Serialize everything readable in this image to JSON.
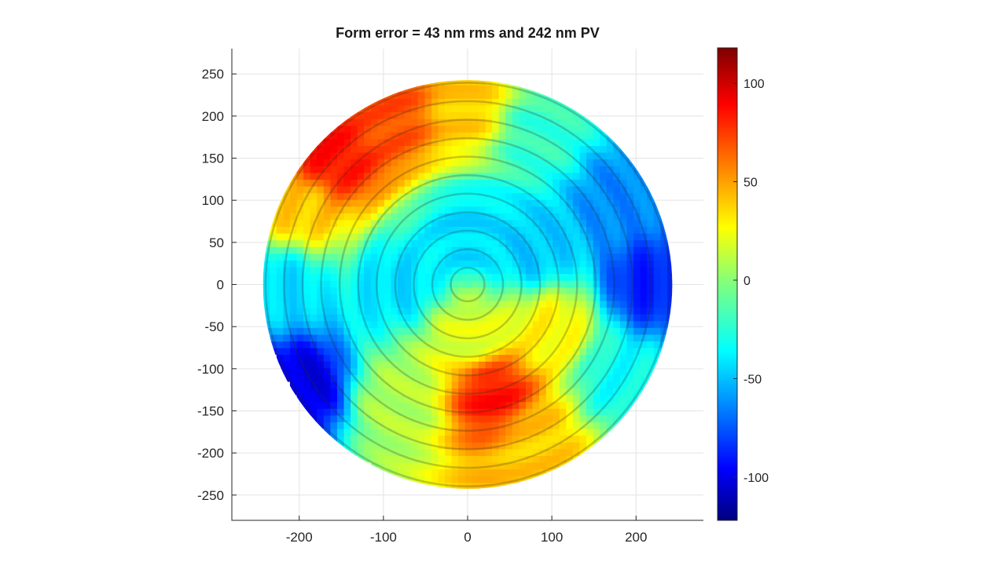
{
  "chart_data": {
    "type": "heatmap",
    "title": "Form error = 43 nm rms and 242 nm PV",
    "xlabel": "",
    "ylabel": "",
    "xlim": [
      -280,
      280
    ],
    "ylim": [
      -280,
      280
    ],
    "x_ticks": [
      -200,
      -100,
      0,
      100,
      200
    ],
    "y_ticks": [
      250,
      200,
      150,
      100,
      50,
      0,
      -50,
      -100,
      -150,
      -200,
      -250
    ],
    "grid": true,
    "aperture_radius": 243,
    "colormap": "jet",
    "colorbar": {
      "range": [
        -122,
        118
      ],
      "ticks": [
        100,
        50,
        0,
        -50,
        -100
      ]
    },
    "surface_regions": [
      {
        "x": -160,
        "y": 150,
        "value": 85
      },
      {
        "x": -90,
        "y": 200,
        "value": 70
      },
      {
        "x": 0,
        "y": 210,
        "value": 40
      },
      {
        "x": 80,
        "y": 180,
        "value": -20
      },
      {
        "x": 180,
        "y": 100,
        "value": -60
      },
      {
        "x": 215,
        "y": 0,
        "value": -85
      },
      {
        "x": 180,
        "y": -110,
        "value": -30
      },
      {
        "x": 80,
        "y": -190,
        "value": 40
      },
      {
        "x": 30,
        "y": -130,
        "value": 85
      },
      {
        "x": 0,
        "y": -60,
        "value": 20
      },
      {
        "x": -80,
        "y": -140,
        "value": 10
      },
      {
        "x": -200,
        "y": -120,
        "value": -100
      },
      {
        "x": -220,
        "y": 0,
        "value": -40
      },
      {
        "x": -200,
        "y": 90,
        "value": 40
      },
      {
        "x": 0,
        "y": 60,
        "value": -40
      },
      {
        "x": -80,
        "y": 0,
        "value": -40
      },
      {
        "x": 80,
        "y": 40,
        "value": -45
      },
      {
        "x": 100,
        "y": -50,
        "value": 30
      }
    ]
  }
}
